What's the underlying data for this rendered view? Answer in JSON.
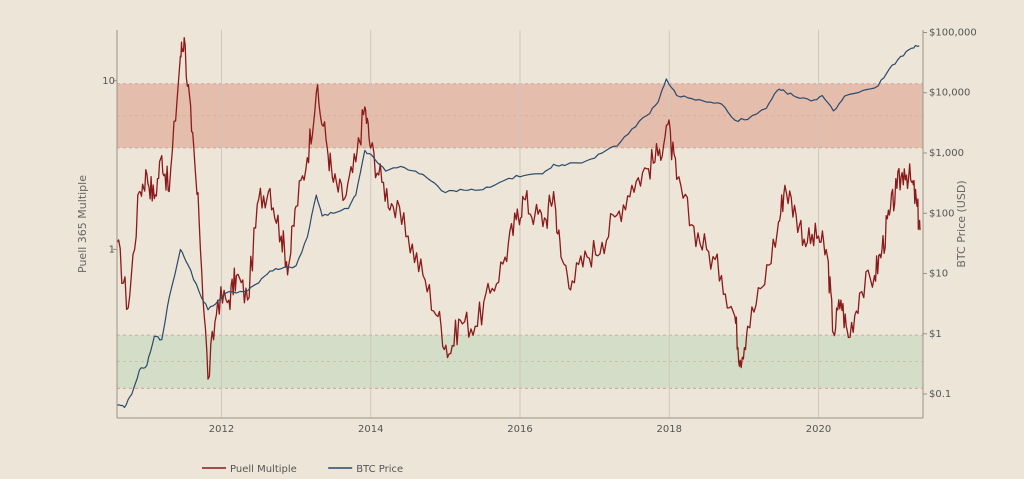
{
  "chart_data": {
    "type": "line",
    "title": "",
    "x_axis": {
      "ticks": [
        "2012",
        "2014",
        "2016",
        "2018",
        "2020"
      ],
      "range": [
        2010.6,
        2021.4
      ],
      "grid": true
    },
    "y_left": {
      "label": "Puell 365 Multiple",
      "scale": "log",
      "ticks": [
        "1",
        "10"
      ],
      "range": [
        0.1,
        20
      ]
    },
    "y_right": {
      "label": "BTC Price (USD)",
      "scale": "log",
      "ticks": [
        "$0.1",
        "$1",
        "$10",
        "$100",
        "$1,000",
        "$10,000",
        "$100,000"
      ],
      "range": [
        0.04,
        110000
      ]
    },
    "bands": [
      {
        "name": "high",
        "axis": "left",
        "from": 4.0,
        "to": 9.6,
        "color": "#e3b6a6"
      },
      {
        "name": "low",
        "axis": "left",
        "from": 0.15,
        "to": 0.31,
        "color": "#cfdcc4"
      }
    ],
    "legend": {
      "placement": "bottom-left"
    },
    "series": [
      {
        "name": "Puell Multiple",
        "axis": "left",
        "color": "#8b1a1a",
        "points": [
          [
            2010.6,
            1.1
          ],
          [
            2010.75,
            0.45
          ],
          [
            2010.9,
            2.2
          ],
          [
            2011.0,
            2.8
          ],
          [
            2011.1,
            2.0
          ],
          [
            2011.2,
            3.6
          ],
          [
            2011.3,
            2.2
          ],
          [
            2011.45,
            14.0
          ],
          [
            2011.5,
            18.0
          ],
          [
            2011.6,
            5.0
          ],
          [
            2011.7,
            1.5
          ],
          [
            2011.82,
            0.17
          ],
          [
            2011.95,
            0.5
          ],
          [
            2012.1,
            0.5
          ],
          [
            2012.2,
            0.7
          ],
          [
            2012.35,
            0.5
          ],
          [
            2012.5,
            2.0
          ],
          [
            2012.65,
            2.3
          ],
          [
            2012.8,
            1.2
          ],
          [
            2012.9,
            0.8
          ],
          [
            2013.0,
            1.8
          ],
          [
            2013.15,
            3.5
          ],
          [
            2013.27,
            8.5
          ],
          [
            2013.4,
            4.5
          ],
          [
            2013.5,
            2.5
          ],
          [
            2013.65,
            2.0
          ],
          [
            2013.8,
            3.3
          ],
          [
            2013.92,
            7.0
          ],
          [
            2014.0,
            4.0
          ],
          [
            2014.15,
            2.5
          ],
          [
            2014.3,
            1.8
          ],
          [
            2014.5,
            1.2
          ],
          [
            2014.7,
            0.7
          ],
          [
            2014.9,
            0.4
          ],
          [
            2015.05,
            0.24
          ],
          [
            2015.2,
            0.38
          ],
          [
            2015.4,
            0.35
          ],
          [
            2015.6,
            0.55
          ],
          [
            2015.8,
            0.9
          ],
          [
            2015.95,
            1.5
          ],
          [
            2016.05,
            2.0
          ],
          [
            2016.2,
            1.6
          ],
          [
            2016.35,
            1.5
          ],
          [
            2016.45,
            2.2
          ],
          [
            2016.55,
            0.9
          ],
          [
            2016.7,
            0.65
          ],
          [
            2016.9,
            0.9
          ],
          [
            2017.1,
            1.1
          ],
          [
            2017.3,
            1.6
          ],
          [
            2017.5,
            2.4
          ],
          [
            2017.7,
            3.0
          ],
          [
            2017.85,
            3.6
          ],
          [
            2017.98,
            5.5
          ],
          [
            2018.1,
            2.6
          ],
          [
            2018.3,
            1.4
          ],
          [
            2018.5,
            1.0
          ],
          [
            2018.7,
            0.7
          ],
          [
            2018.88,
            0.4
          ],
          [
            2018.95,
            0.22
          ],
          [
            2019.05,
            0.35
          ],
          [
            2019.25,
            0.6
          ],
          [
            2019.45,
            1.3
          ],
          [
            2019.55,
            2.4
          ],
          [
            2019.7,
            1.6
          ],
          [
            2019.85,
            1.1
          ],
          [
            2020.0,
            1.2
          ],
          [
            2020.12,
            0.9
          ],
          [
            2020.2,
            0.32
          ],
          [
            2020.3,
            0.5
          ],
          [
            2020.4,
            0.3
          ],
          [
            2020.55,
            0.55
          ],
          [
            2020.75,
            0.7
          ],
          [
            2020.85,
            1.0
          ],
          [
            2020.95,
            1.6
          ],
          [
            2021.05,
            2.3
          ],
          [
            2021.15,
            3.0
          ],
          [
            2021.25,
            2.5
          ],
          [
            2021.32,
            1.8
          ],
          [
            2021.36,
            1.3
          ]
        ]
      },
      {
        "name": "BTC Price",
        "axis": "right",
        "color": "#2b4a6b",
        "points": [
          [
            2010.6,
            0.065
          ],
          [
            2010.7,
            0.06
          ],
          [
            2010.8,
            0.1
          ],
          [
            2010.9,
            0.25
          ],
          [
            2011.0,
            0.3
          ],
          [
            2011.1,
            0.9
          ],
          [
            2011.2,
            0.8
          ],
          [
            2011.3,
            4.0
          ],
          [
            2011.45,
            25.0
          ],
          [
            2011.55,
            14.0
          ],
          [
            2011.7,
            5.0
          ],
          [
            2011.82,
            2.5
          ],
          [
            2011.95,
            3.5
          ],
          [
            2012.1,
            5.0
          ],
          [
            2012.3,
            5.0
          ],
          [
            2012.5,
            7.0
          ],
          [
            2012.65,
            11.0
          ],
          [
            2012.8,
            12.0
          ],
          [
            2013.0,
            13.5
          ],
          [
            2013.15,
            40.0
          ],
          [
            2013.27,
            200.0
          ],
          [
            2013.35,
            90.0
          ],
          [
            2013.5,
            100.0
          ],
          [
            2013.7,
            120.0
          ],
          [
            2013.8,
            200.0
          ],
          [
            2013.92,
            1100.0
          ],
          [
            2014.05,
            800.0
          ],
          [
            2014.2,
            500.0
          ],
          [
            2014.4,
            600.0
          ],
          [
            2014.6,
            500.0
          ],
          [
            2014.8,
            350.0
          ],
          [
            2015.0,
            220.0
          ],
          [
            2015.2,
            250.0
          ],
          [
            2015.4,
            240.0
          ],
          [
            2015.6,
            270.0
          ],
          [
            2015.85,
            380.0
          ],
          [
            2016.05,
            420.0
          ],
          [
            2016.3,
            450.0
          ],
          [
            2016.45,
            650.0
          ],
          [
            2016.6,
            620.0
          ],
          [
            2016.9,
            750.0
          ],
          [
            2017.1,
            1000.0
          ],
          [
            2017.3,
            1300.0
          ],
          [
            2017.5,
            2500.0
          ],
          [
            2017.7,
            4200.0
          ],
          [
            2017.85,
            7000.0
          ],
          [
            2017.96,
            17000.0
          ],
          [
            2018.1,
            9000.0
          ],
          [
            2018.3,
            8000.0
          ],
          [
            2018.5,
            7000.0
          ],
          [
            2018.7,
            6500.0
          ],
          [
            2018.88,
            3500.0
          ],
          [
            2019.05,
            3600.0
          ],
          [
            2019.3,
            5500.0
          ],
          [
            2019.45,
            11000.0
          ],
          [
            2019.55,
            10500.0
          ],
          [
            2019.7,
            8500.0
          ],
          [
            2019.9,
            7300.0
          ],
          [
            2020.05,
            9000.0
          ],
          [
            2020.2,
            5000.0
          ],
          [
            2020.35,
            8800.0
          ],
          [
            2020.6,
            11000.0
          ],
          [
            2020.8,
            13000.0
          ],
          [
            2020.95,
            25000.0
          ],
          [
            2021.1,
            40000.0
          ],
          [
            2021.25,
            55000.0
          ],
          [
            2021.35,
            60000.0
          ]
        ]
      }
    ]
  }
}
